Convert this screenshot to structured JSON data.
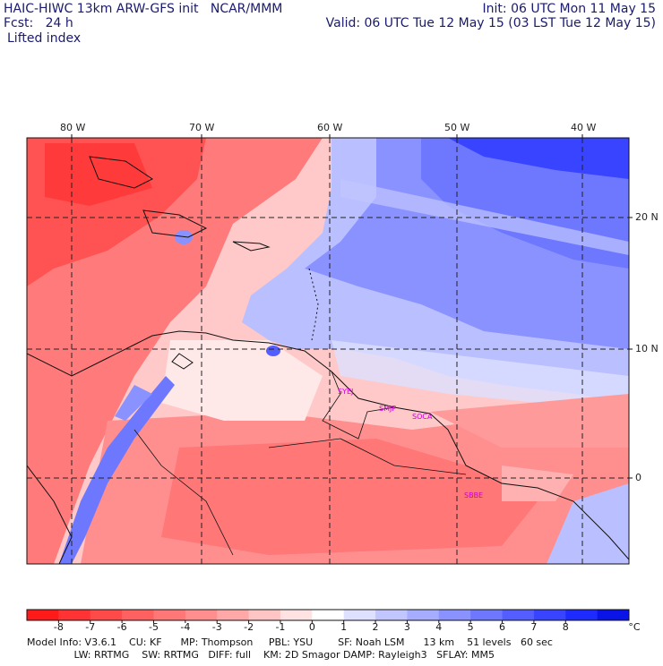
{
  "header": {
    "title": "HAIC-HIWC 13km ARW-GFS init   NCAR/MMM",
    "fcst": "Fcst:   24 h",
    "field": "Lifted index",
    "init": "Init: 06 UTC Mon 11 May 15",
    "valid": "Valid: 06 UTC Tue 12 May 15 (03 LST Tue 12 May 15)"
  },
  "map": {
    "lon_labels": [
      "80 W",
      "70 W",
      "60 W",
      "50 W",
      "40 W"
    ],
    "lat_labels": [
      "20 N",
      "10 N",
      "0"
    ],
    "stations": [
      "SYEJ",
      "SMJP",
      "SOCA",
      "SBBE"
    ]
  },
  "colorbar": {
    "labels": [
      "-8",
      "-7",
      "-6",
      "-5",
      "-4",
      "-3",
      "-2",
      "-1",
      "0",
      "1",
      "2",
      "3",
      "4",
      "5",
      "6",
      "7",
      "8"
    ],
    "unit": "°C",
    "colors": [
      "#ff1a1a",
      "#ff3333",
      "#ff4a4a",
      "#ff6060",
      "#ff7777",
      "#ff8f8f",
      "#ffa8a8",
      "#ffc4c4",
      "#ffe2e2",
      "#ffffff",
      "#dde0ff",
      "#c2c6ff",
      "#a6acff",
      "#8a92ff",
      "#6e78ff",
      "#545eff",
      "#3844ff",
      "#1e2bff",
      "#0a14e6"
    ]
  },
  "footer": {
    "line1": "Model Info: V3.6.1    CU: KF      MP: Thompson     PBL: YSU        SF: Noah LSM      13 km    51 levels   60 sec",
    "line2": "               LW: RRTMG    SW: RRTMG   DIFF: full    KM: 2D Smagor DAMP: Rayleigh3   SFLAY: MM5"
  }
}
